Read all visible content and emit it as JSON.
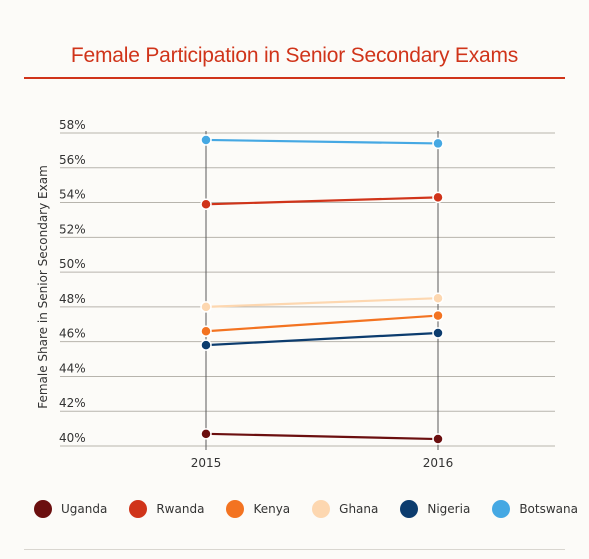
{
  "chart_data": {
    "type": "line",
    "title": "Female Participation in Senior Secondary Exams",
    "ylabel": "Female Share in Senior Secondary Exam",
    "xlabel": "",
    "x": [
      "2015",
      "2016"
    ],
    "ylim": [
      40,
      58
    ],
    "yticks": [
      "40%",
      "42%",
      "44%",
      "46%",
      "48%",
      "50%",
      "52%",
      "54%",
      "56%",
      "58%"
    ],
    "grid": true,
    "legend_position": "bottom",
    "series": [
      {
        "name": "Uganda",
        "color": "#6b0f0f",
        "values": [
          40.7,
          40.4
        ]
      },
      {
        "name": "Rwanda",
        "color": "#d0341a",
        "values": [
          53.9,
          54.3
        ]
      },
      {
        "name": "Kenya",
        "color": "#f37321",
        "values": [
          46.6,
          47.5
        ]
      },
      {
        "name": "Ghana",
        "color": "#fdd7b0",
        "values": [
          48.0,
          48.5
        ]
      },
      {
        "name": "Nigeria",
        "color": "#0c3c6e",
        "values": [
          45.8,
          46.5
        ]
      },
      {
        "name": "Botswana",
        "color": "#45a8e3",
        "values": [
          57.6,
          57.4
        ]
      }
    ]
  }
}
